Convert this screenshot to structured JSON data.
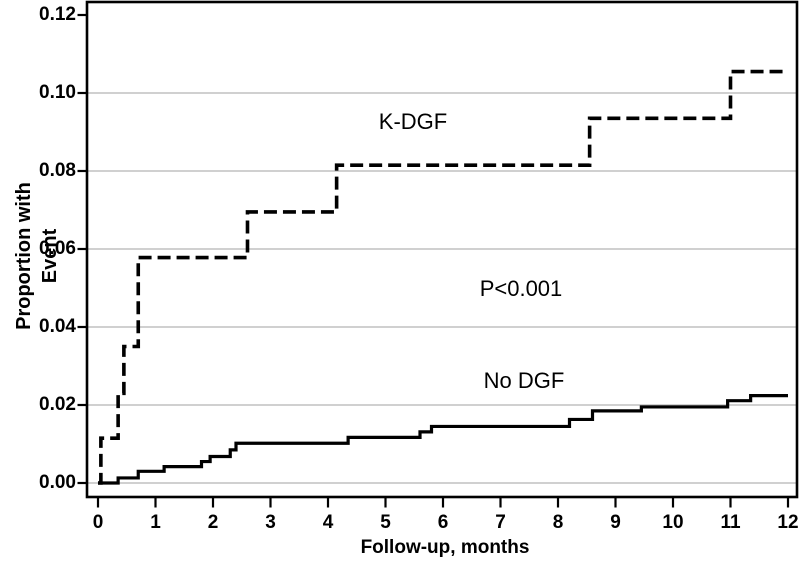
{
  "chart_data": {
    "type": "line",
    "subtype": "kaplan-meier-cumulative-incidence-step",
    "title": "",
    "xlabel": "Follow-up, months",
    "ylabel": "Proportion with Event",
    "xlim": [
      0,
      12
    ],
    "ylim": [
      0,
      0.12
    ],
    "x_tick_values": [
      0,
      1,
      2,
      3,
      4,
      5,
      6,
      7,
      8,
      9,
      10,
      11,
      12
    ],
    "x_tick_labels": [
      "0",
      "1",
      "2",
      "3",
      "4",
      "5",
      "6",
      "7",
      "8",
      "9",
      "10",
      "11",
      "12"
    ],
    "y_tick_values": [
      0,
      0.02,
      0.04,
      0.06,
      0.08,
      0.1,
      0.12
    ],
    "y_tick_labels": [
      "0.00",
      "0.02",
      "0.04",
      "0.06",
      "0.08",
      "0.10",
      "0.12"
    ],
    "gridline_values": [
      0,
      0.02,
      0.04,
      0.06,
      0.08,
      0.1
    ],
    "grid": "horizontal",
    "legend_position": "inline-curve-labels",
    "annotations": [
      {
        "id": "kdgf-label",
        "text": "K-DGF"
      },
      {
        "id": "p-value",
        "text": "P<0.001"
      },
      {
        "id": "nodgf-label",
        "text": "No DGF"
      }
    ],
    "series": [
      {
        "name": "K-DGF",
        "line_style": "dashed",
        "step": "after",
        "color": "#000000",
        "points": [
          [
            0,
            0.0
          ],
          [
            0.05,
            0.0115
          ],
          [
            0.35,
            0.023
          ],
          [
            0.45,
            0.035
          ],
          [
            0.7,
            0.0578
          ],
          [
            2.6,
            0.0695
          ],
          [
            4.15,
            0.0815
          ],
          [
            8.55,
            0.0935
          ],
          [
            11.0,
            0.1055
          ],
          [
            12,
            0.1055
          ]
        ]
      },
      {
        "name": "No DGF",
        "line_style": "solid",
        "step": "after",
        "color": "#000000",
        "points": [
          [
            0,
            0.0
          ],
          [
            0.35,
            0.0013
          ],
          [
            0.7,
            0.003
          ],
          [
            1.15,
            0.0042
          ],
          [
            1.8,
            0.0055
          ],
          [
            1.95,
            0.0068
          ],
          [
            2.3,
            0.0085
          ],
          [
            2.4,
            0.0102
          ],
          [
            4.35,
            0.0117
          ],
          [
            5.6,
            0.0131
          ],
          [
            5.8,
            0.0145
          ],
          [
            8.2,
            0.0163
          ],
          [
            8.6,
            0.0185
          ],
          [
            9.45,
            0.0195
          ],
          [
            10.95,
            0.0211
          ],
          [
            11.35,
            0.0224
          ],
          [
            12,
            0.0224
          ]
        ]
      }
    ]
  },
  "colors": {
    "curve": "#000000",
    "grid": "#b5b5b5",
    "axis": "#000000",
    "background": "#ffffff",
    "text": "#000000"
  }
}
